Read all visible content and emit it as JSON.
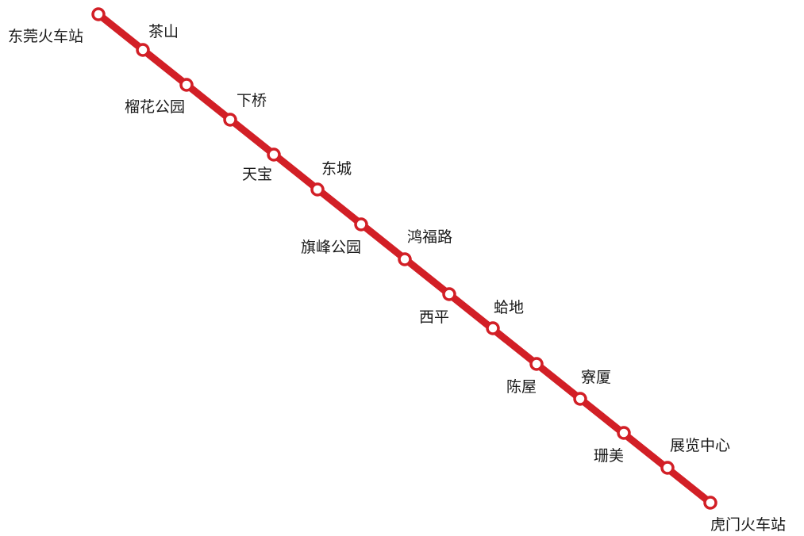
{
  "line": {
    "color": "#d21f26",
    "station_fill": "#ffffff"
  },
  "stations": [
    {
      "id": "s1",
      "name": "东莞火车站"
    },
    {
      "id": "s2",
      "name": "茶山"
    },
    {
      "id": "s3",
      "name": "榴花公园"
    },
    {
      "id": "s4",
      "name": "下桥"
    },
    {
      "id": "s5",
      "name": "天宝"
    },
    {
      "id": "s6",
      "name": "东城"
    },
    {
      "id": "s7",
      "name": "旗峰公园"
    },
    {
      "id": "s8",
      "name": "鸿福路"
    },
    {
      "id": "s9",
      "name": "西平"
    },
    {
      "id": "s10",
      "name": "蛤地"
    },
    {
      "id": "s11",
      "name": "陈屋"
    },
    {
      "id": "s12",
      "name": "寮厦"
    },
    {
      "id": "s13",
      "name": "珊美"
    },
    {
      "id": "s14",
      "name": "展览中心"
    },
    {
      "id": "s15",
      "name": "虎门火车站"
    }
  ]
}
